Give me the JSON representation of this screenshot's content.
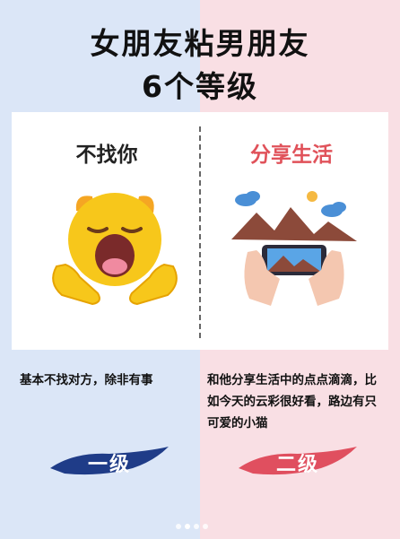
{
  "header": {
    "title_line1": "女朋友粘男朋友",
    "title_line2": "6个等级"
  },
  "left_column": {
    "heading": "不找你",
    "illustration": "yawning-face-emoji",
    "description": "基本不找对方，除非有事",
    "level_label": "一级",
    "brush_color": "#1f3c88"
  },
  "right_column": {
    "heading": "分享生活",
    "illustration": "hands-holding-phone-landscape",
    "description": "和他分享生活中的点点滴滴，比如今天的云彩很好看，路边有只可爱的小猫",
    "level_label": "二级",
    "brush_color": "#e04f5f"
  },
  "pagination": {
    "total": 4,
    "current": 1
  },
  "colors": {
    "left_bg": "#dbe6f7",
    "right_bg": "#f9dfe4",
    "accent_red": "#e0525a"
  }
}
